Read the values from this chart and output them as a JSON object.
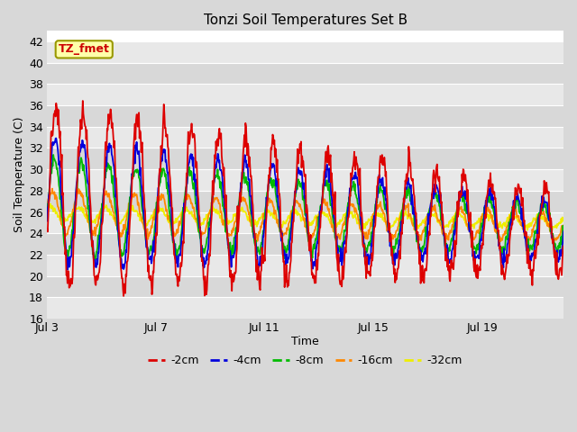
{
  "title": "Tonzi Soil Temperatures Set B",
  "xlabel": "Time",
  "ylabel": "Soil Temperature (C)",
  "ylim": [
    16,
    43
  ],
  "yticks": [
    16,
    18,
    20,
    22,
    24,
    26,
    28,
    30,
    32,
    34,
    36,
    38,
    40,
    42
  ],
  "x_tick_labels": [
    "Jul 3",
    "Jul 7",
    "Jul 11",
    "Jul 15",
    "Jul 19"
  ],
  "x_tick_positions": [
    0,
    4,
    8,
    12,
    16
  ],
  "n_days": 19,
  "colors": {
    "-2cm": "#dd0000",
    "-4cm": "#0000dd",
    "-8cm": "#00bb00",
    "-16cm": "#ff8800",
    "-32cm": "#eeee00"
  },
  "annotation_text": "TZ_fmet",
  "annotation_bg": "#ffffaa",
  "annotation_border": "#999900",
  "fig_bg": "#d8d8d8",
  "band_colors": [
    "#e8e8e8",
    "#d8d8d8"
  ],
  "grid_line_color": "#ffffff"
}
